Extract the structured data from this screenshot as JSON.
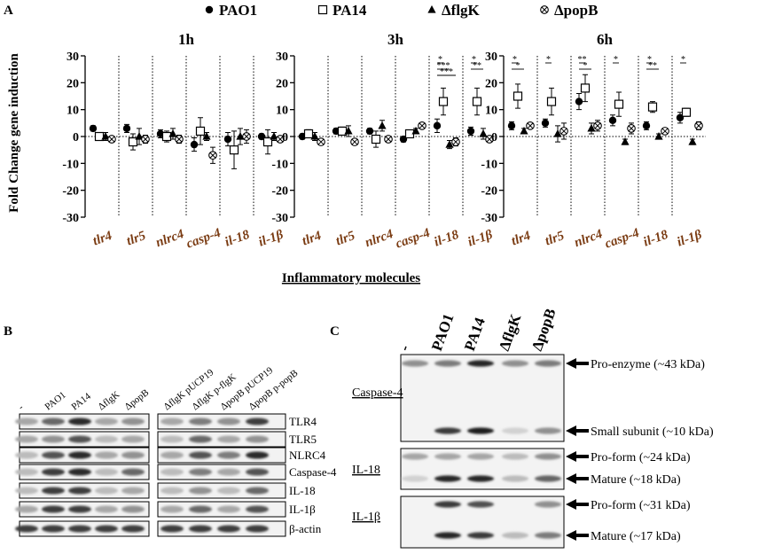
{
  "panels": {
    "a": "A",
    "b": "B",
    "c": "C"
  },
  "legend": [
    {
      "label": "PAO1",
      "marker": "filled-circle"
    },
    {
      "label": "PA14",
      "marker": "open-square"
    },
    {
      "label": "ΔflgK",
      "marker": "filled-triangle"
    },
    {
      "label": "ΔpopB",
      "marker": "crossed-circle"
    }
  ],
  "chart_data": {
    "type": "scatter",
    "ylabel": "Fold Change gene induction",
    "xlabel": "Inflammatory molecules",
    "ylim": [
      -30,
      30
    ],
    "yticks": [
      -30,
      -20,
      -10,
      0,
      10,
      20,
      30
    ],
    "categories": [
      "tlr4",
      "tlr5",
      "nlrc4",
      "casp-4",
      "il-18",
      "il-1β"
    ],
    "strains": [
      "PAO1",
      "PA14",
      "ΔflgK",
      "ΔpopB"
    ],
    "panels": [
      {
        "title": "1h",
        "series": [
          {
            "name": "PAO1",
            "values": [
              3,
              3,
              1,
              -3,
              -1,
              0
            ],
            "err": [
              1,
              1.5,
              1.5,
              2.5,
              2.5,
              1
            ]
          },
          {
            "name": "PA14",
            "values": [
              0,
              -2,
              0,
              2,
              -5,
              -2
            ],
            "err": [
              1.5,
              3,
              2,
              5,
              7,
              4.5
            ]
          },
          {
            "name": "ΔflgK",
            "values": [
              0,
              0,
              1,
              0,
              0,
              0
            ],
            "err": [
              1.5,
              3,
              2,
              1.5,
              3,
              1.5
            ]
          },
          {
            "name": "ΔpopB",
            "values": [
              -1,
              -1,
              -1,
              -7,
              0,
              -1
            ],
            "err": [
              1,
              1.5,
              1.5,
              3,
              2.5,
              1
            ]
          }
        ],
        "significance": []
      },
      {
        "title": "3h",
        "series": [
          {
            "name": "PAO1",
            "values": [
              0,
              2,
              2,
              -1,
              4,
              2
            ],
            "err": [
              1,
              1,
              1,
              1,
              2.5,
              1.5
            ]
          },
          {
            "name": "PA14",
            "values": [
              1,
              2,
              -1,
              1,
              13,
              13
            ],
            "err": [
              1.5,
              1.5,
              3,
              1,
              5,
              5
            ]
          },
          {
            "name": "ΔflgK",
            "values": [
              0,
              2,
              4,
              2,
              -3,
              1
            ],
            "err": [
              1.5,
              2,
              2,
              1,
              1.5,
              2
            ]
          },
          {
            "name": "ΔpopB",
            "values": [
              -2,
              -2,
              -1,
              4,
              -2,
              -1
            ],
            "err": [
              1,
              1,
              1,
              1,
              1.5,
              1
            ]
          }
        ],
        "significance": [
          {
            "category": "il-18",
            "label": "*",
            "level": 1
          },
          {
            "category": "il-18",
            "label": "***",
            "level": 2
          },
          {
            "category": "il-18",
            "label": "***",
            "level": 3
          },
          {
            "category": "il-1β",
            "label": "*",
            "level": 1
          },
          {
            "category": "il-1β",
            "label": "**",
            "level": 2
          }
        ]
      },
      {
        "title": "6h",
        "series": [
          {
            "name": "PAO1",
            "values": [
              4,
              5,
              13,
              6,
              4,
              7
            ],
            "err": [
              1.5,
              1.5,
              3,
              2,
              1.5,
              2
            ]
          },
          {
            "name": "PA14",
            "values": [
              15,
              13,
              18,
              12,
              11,
              9
            ],
            "err": [
              4.5,
              5,
              5,
              4.5,
              2,
              1.5
            ]
          },
          {
            "name": "ΔflgK",
            "values": [
              2,
              1,
              3,
              -2,
              0,
              -2
            ],
            "err": [
              1,
              3,
              2,
              1,
              1,
              1
            ]
          },
          {
            "name": "ΔpopB",
            "values": [
              4,
              2,
              4,
              3,
              2,
              4
            ],
            "err": [
              1,
              3,
              2,
              2,
              1,
              1.5
            ]
          }
        ],
        "significance": [
          {
            "category": "tlr4",
            "label": "*",
            "level": 1
          },
          {
            "category": "tlr4",
            "label": "*",
            "level": 2
          },
          {
            "category": "tlr5",
            "label": "*",
            "level": 1
          },
          {
            "category": "nlrc4",
            "label": "**",
            "level": 1
          },
          {
            "category": "nlrc4",
            "label": "*",
            "level": 2
          },
          {
            "category": "casp-4",
            "label": "*",
            "level": 1
          },
          {
            "category": "il-18",
            "label": "*",
            "level": 1
          },
          {
            "category": "il-18",
            "label": "**",
            "level": 2
          },
          {
            "category": "il-1β",
            "label": "*",
            "level": 1
          }
        ]
      }
    ]
  },
  "blot_b": {
    "columns": [
      "-",
      "PAO1",
      "PA14",
      "ΔflgK",
      "ΔpopB",
      "ΔflgK pUCP19",
      "ΔflgK p-flgK",
      "ΔpopB pUCP19",
      "ΔpopB p-popB"
    ],
    "rows": [
      "TLR4",
      "TLR5",
      "NLRC4",
      "Caspase-4",
      "IL-18",
      "IL-1β",
      "β-actin"
    ],
    "intensity": [
      [
        0.3,
        0.6,
        0.9,
        0.3,
        0.4,
        0.3,
        0.5,
        0.4,
        0.8
      ],
      [
        0.3,
        0.4,
        0.7,
        0.2,
        0.3,
        0.2,
        0.6,
        0.3,
        0.4
      ],
      [
        0.2,
        0.7,
        0.9,
        0.3,
        0.4,
        0.3,
        0.7,
        0.5,
        0.9
      ],
      [
        0.2,
        0.8,
        0.9,
        0.2,
        0.6,
        0.2,
        0.5,
        0.3,
        0.7
      ],
      [
        0.2,
        0.8,
        0.8,
        0.2,
        0.3,
        0.2,
        0.4,
        0.2,
        0.6
      ],
      [
        0.3,
        0.8,
        0.8,
        0.3,
        0.4,
        0.3,
        0.6,
        0.3,
        0.7
      ],
      [
        0.8,
        0.8,
        0.8,
        0.8,
        0.8,
        0.8,
        0.8,
        0.8,
        0.8
      ]
    ]
  },
  "blot_c": {
    "columns": [
      "-",
      "PAO1",
      "PA14",
      "ΔflgK",
      "ΔpopB"
    ],
    "groups": [
      {
        "label": "Caspase-4",
        "bands": [
          {
            "label": "Pro-enzyme (~43 kDa)",
            "intensity": [
              0.4,
              0.5,
              0.9,
              0.4,
              0.5
            ]
          },
          {
            "label": "Small subunit (~10 kDa)",
            "intensity": [
              0.0,
              0.8,
              0.95,
              0.1,
              0.4
            ]
          }
        ]
      },
      {
        "label": "IL-18",
        "bands": [
          {
            "label": "Pro-form (~24 kDa)",
            "intensity": [
              0.3,
              0.3,
              0.3,
              0.2,
              0.4
            ]
          },
          {
            "label": "Mature (~18 kDa)",
            "intensity": [
              0.1,
              0.9,
              0.9,
              0.2,
              0.6
            ]
          }
        ]
      },
      {
        "label": "IL-1β",
        "bands": [
          {
            "label": "Pro-form (~31 kDa)",
            "intensity": [
              0.0,
              0.8,
              0.7,
              0.0,
              0.4
            ]
          },
          {
            "label": "Mature (~17 kDa)",
            "intensity": [
              0.0,
              0.9,
              0.8,
              0.2,
              0.5
            ]
          }
        ]
      }
    ]
  }
}
